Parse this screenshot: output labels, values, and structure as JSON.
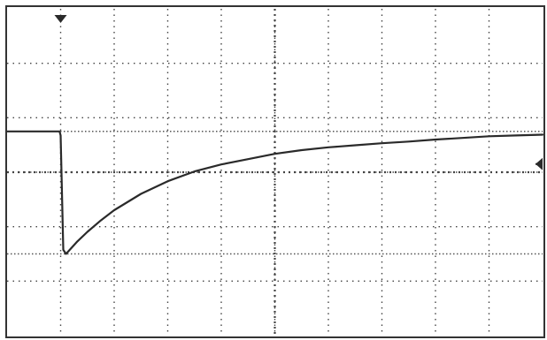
{
  "chart_data": {
    "type": "line",
    "title": "",
    "xlabel": "",
    "ylabel": "",
    "grid": true,
    "grid_style": "dotted",
    "xlim": [
      0,
      10
    ],
    "ylim": [
      -4,
      4
    ],
    "x_divisions": 10,
    "y_divisions": 6,
    "reference_lines": {
      "upper_level": 1.0,
      "lower_level": -2.0
    },
    "markers": {
      "trigger_position_x": 1.0,
      "level_marker_y": 0.2
    },
    "series": [
      {
        "values_x": [
          0.0,
          0.98,
          1.0,
          1.05,
          1.1,
          1.3,
          1.5,
          1.75,
          2.0,
          2.5,
          3.0,
          3.5,
          4.0,
          4.5,
          5.0,
          5.5,
          6.0,
          6.5,
          7.0,
          7.5,
          8.0,
          8.5,
          9.0,
          9.5,
          10.0
        ],
        "values_y": [
          1.0,
          1.0,
          0.9,
          -1.9,
          -2.0,
          -1.71,
          -1.46,
          -1.18,
          -0.93,
          -0.53,
          -0.22,
          0.02,
          0.19,
          0.32,
          0.45,
          0.54,
          0.61,
          0.66,
          0.71,
          0.75,
          0.8,
          0.84,
          0.88,
          0.9,
          0.92
        ]
      }
    ],
    "colors": {
      "background": "#ffffff",
      "grid": "#444444",
      "trace": "#2a2a2a",
      "frame": "#333333",
      "reference_line": "#555555"
    }
  }
}
